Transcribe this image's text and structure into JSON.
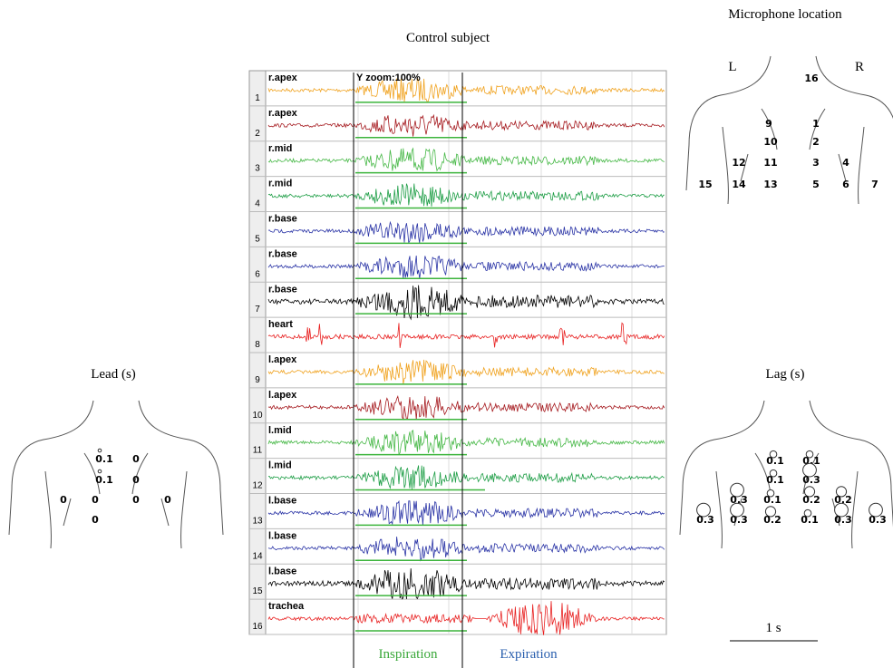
{
  "title": "Control subject",
  "trace_panel": {
    "zoom_label": "Y zoom:100%",
    "channels": [
      {
        "number": 1,
        "label": "r.apex",
        "color": "#f0a21e"
      },
      {
        "number": 2,
        "label": "r.apex",
        "color": "#a5191e"
      },
      {
        "number": 3,
        "label": "r.mid",
        "color": "#46b846"
      },
      {
        "number": 4,
        "label": "r.mid",
        "color": "#1e9e46"
      },
      {
        "number": 5,
        "label": "r.base",
        "color": "#2832a5"
      },
      {
        "number": 6,
        "label": "r.base",
        "color": "#2832a5"
      },
      {
        "number": 7,
        "label": "r.base",
        "color": "#000000"
      },
      {
        "number": 8,
        "label": "heart",
        "color": "#e82020"
      },
      {
        "number": 9,
        "label": "l.apex",
        "color": "#f0a21e"
      },
      {
        "number": 10,
        "label": "l.apex",
        "color": "#a5191e"
      },
      {
        "number": 11,
        "label": "l.mid",
        "color": "#46b846"
      },
      {
        "number": 12,
        "label": "l.mid",
        "color": "#1e9e46"
      },
      {
        "number": 13,
        "label": "l.base",
        "color": "#2832a5"
      },
      {
        "number": 14,
        "label": "l.base",
        "color": "#2832a5"
      },
      {
        "number": 15,
        "label": "l.base",
        "color": "#000000"
      },
      {
        "number": 16,
        "label": "trachea",
        "color": "#e82020"
      }
    ],
    "inspiration_label": "Inspiration",
    "expiration_label": "Expiration"
  },
  "microphone_location": {
    "title": "Microphone location",
    "left": "L",
    "right": "R",
    "microphones": [
      16,
      9,
      1,
      10,
      2,
      12,
      11,
      3,
      4,
      15,
      14,
      13,
      5,
      6,
      7
    ]
  },
  "lead": {
    "title": "Lead (s)",
    "values": [
      0.1,
      0,
      0.1,
      0,
      0,
      0,
      0,
      0,
      0
    ]
  },
  "lag": {
    "title": "Lag (s)",
    "values": [
      0.1,
      0.1,
      0.1,
      0.3,
      0.3,
      0.1,
      0.2,
      0.2,
      0.3,
      0.3,
      0.2,
      0.1,
      0.3,
      0.3
    ]
  },
  "scale_bar": "1 s"
}
